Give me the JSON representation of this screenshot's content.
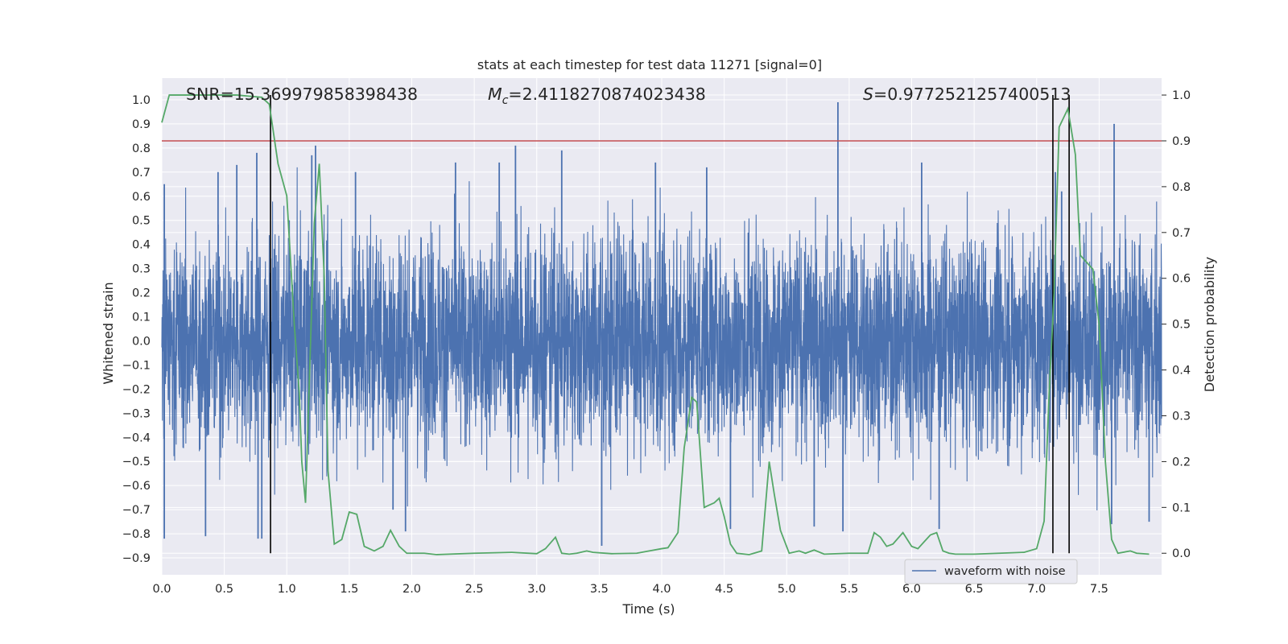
{
  "chart_data": {
    "type": "line",
    "title": "stats at each timestep for test data 11271 [signal=0]",
    "xlabel": "Time (s)",
    "ylabel": "Whitened strain",
    "ylabel_right": "Detection probability",
    "xlim": [
      0.0,
      8.0
    ],
    "ylim": [
      -0.97,
      1.09
    ],
    "ylim_right": [
      -0.047,
      1.037
    ],
    "x_ticks": [
      0.0,
      0.5,
      1.0,
      1.5,
      2.0,
      2.5,
      3.0,
      3.5,
      4.0,
      4.5,
      5.0,
      5.5,
      6.0,
      6.5,
      7.0,
      7.5
    ],
    "x_tick_labels": [
      "0.0",
      "0.5",
      "1.0",
      "1.5",
      "2.0",
      "2.5",
      "3.0",
      "3.5",
      "4.0",
      "4.5",
      "5.0",
      "5.5",
      "6.0",
      "6.5",
      "7.0",
      "7.5"
    ],
    "y_ticks": [
      1.0,
      0.9,
      0.8,
      0.7,
      0.6,
      0.5,
      0.4,
      0.3,
      0.2,
      0.1,
      0.0,
      -0.1,
      -0.2,
      -0.3,
      -0.4,
      -0.5,
      -0.6,
      -0.7,
      -0.8,
      -0.9
    ],
    "y_tick_labels": [
      "1.0",
      "0.9",
      "0.8",
      "0.7",
      "0.6",
      "0.5",
      "0.4",
      "0.3",
      "0.2",
      "0.1",
      "0.0",
      "−0.1",
      "−0.2",
      "−0.3",
      "−0.4",
      "−0.5",
      "−0.6",
      "−0.7",
      "−0.8",
      "−0.9"
    ],
    "y_right_ticks": [
      1.0,
      0.9,
      0.8,
      0.7,
      0.6,
      0.5,
      0.4,
      0.3,
      0.2,
      0.1,
      0.0
    ],
    "y_right_tick_labels": [
      "1.0",
      "0.9",
      "0.8",
      "0.7",
      "0.6",
      "0.5",
      "0.4",
      "0.3",
      "0.2",
      "0.1",
      "0.0"
    ],
    "grid": true,
    "legend_position": "lower-right",
    "annotations": {
      "snr": "SNR=15.369979858398438",
      "mc_symbol": "M",
      "mc_subscript": "c",
      "mc_value": "=2.4118270874023438",
      "s_symbol": "S",
      "s_value": "=0.9772521257400513"
    },
    "series": [
      {
        "name": "waveform with noise",
        "color": "#4c72b0",
        "axis": "left",
        "envelope_rms": 0.22,
        "spikes": [
          {
            "x": 0.02,
            "y": 0.65
          },
          {
            "x": 0.02,
            "y": -0.82
          },
          {
            "x": 0.35,
            "y": -0.81
          },
          {
            "x": 0.45,
            "y": 0.7
          },
          {
            "x": 0.6,
            "y": 0.73
          },
          {
            "x": 0.76,
            "y": 0.78
          },
          {
            "x": 0.77,
            "y": -0.82
          },
          {
            "x": 0.8,
            "y": -0.82
          },
          {
            "x": 1.2,
            "y": 0.77
          },
          {
            "x": 1.23,
            "y": 0.81
          },
          {
            "x": 1.55,
            "y": 0.7
          },
          {
            "x": 1.85,
            "y": -0.7
          },
          {
            "x": 1.95,
            "y": -0.79
          },
          {
            "x": 2.35,
            "y": 0.74
          },
          {
            "x": 2.7,
            "y": 0.74
          },
          {
            "x": 2.83,
            "y": 0.81
          },
          {
            "x": 3.2,
            "y": 0.79
          },
          {
            "x": 3.52,
            "y": -0.85
          },
          {
            "x": 3.95,
            "y": 0.74
          },
          {
            "x": 4.36,
            "y": 0.72
          },
          {
            "x": 4.55,
            "y": -0.78
          },
          {
            "x": 5.22,
            "y": -0.77
          },
          {
            "x": 5.41,
            "y": 0.99
          },
          {
            "x": 5.45,
            "y": -0.79
          },
          {
            "x": 6.08,
            "y": 0.74
          },
          {
            "x": 6.22,
            "y": -0.78
          },
          {
            "x": 7.15,
            "y": 0.7
          },
          {
            "x": 7.2,
            "y": 0.62
          },
          {
            "x": 7.6,
            "y": -0.76
          },
          {
            "x": 7.62,
            "y": 0.9
          },
          {
            "x": 7.9,
            "y": -0.75
          }
        ]
      },
      {
        "name": "",
        "color": "#55a868",
        "axis": "right",
        "x": [
          0.0,
          0.06,
          0.2,
          0.4,
          0.6,
          0.8,
          0.86,
          0.93,
          1.0,
          1.06,
          1.1,
          1.12,
          1.15,
          1.22,
          1.26,
          1.3,
          1.33,
          1.38,
          1.44,
          1.5,
          1.56,
          1.62,
          1.7,
          1.77,
          1.83,
          1.9,
          1.96,
          2.0,
          2.1,
          2.2,
          2.5,
          2.8,
          3.0,
          3.07,
          3.15,
          3.2,
          3.26,
          3.32,
          3.4,
          3.45,
          3.6,
          3.8,
          3.9,
          4.0,
          4.05,
          4.13,
          4.18,
          4.24,
          4.28,
          4.34,
          4.38,
          4.42,
          4.46,
          4.5,
          4.55,
          4.6,
          4.7,
          4.8,
          4.86,
          4.9,
          4.95,
          5.02,
          5.1,
          5.15,
          5.22,
          5.3,
          5.5,
          5.65,
          5.7,
          5.75,
          5.8,
          5.85,
          5.93,
          6.0,
          6.05,
          6.1,
          6.15,
          6.2,
          6.25,
          6.3,
          6.35,
          6.5,
          6.7,
          6.9,
          7.0,
          7.06,
          7.1,
          7.14,
          7.18,
          7.25,
          7.31,
          7.35,
          7.45,
          7.5,
          7.55,
          7.6,
          7.65,
          7.75,
          7.8,
          7.9
        ],
        "values": [
          0.94,
          1.0,
          1.0,
          1.0,
          1.0,
          0.995,
          0.98,
          0.85,
          0.78,
          0.5,
          0.35,
          0.2,
          0.11,
          0.72,
          0.85,
          0.6,
          0.18,
          0.02,
          0.03,
          0.09,
          0.085,
          0.015,
          0.005,
          0.015,
          0.05,
          0.015,
          0.0,
          0.0,
          0.0,
          -0.003,
          0.0,
          0.002,
          -0.001,
          0.01,
          0.035,
          0.0,
          -0.002,
          0.0,
          0.005,
          0.002,
          -0.001,
          0.0,
          0.005,
          0.01,
          0.012,
          0.045,
          0.23,
          0.34,
          0.33,
          0.1,
          0.105,
          0.11,
          0.12,
          0.08,
          0.02,
          0.0,
          -0.003,
          0.005,
          0.2,
          0.13,
          0.05,
          0.0,
          0.005,
          0.0,
          0.007,
          -0.002,
          0.0,
          0.0,
          0.045,
          0.035,
          0.015,
          0.02,
          0.045,
          0.015,
          0.01,
          0.025,
          0.04,
          0.045,
          0.005,
          0.0,
          -0.002,
          -0.002,
          0.0,
          0.002,
          0.01,
          0.07,
          0.35,
          0.57,
          0.93,
          0.97,
          0.87,
          0.65,
          0.62,
          0.5,
          0.2,
          0.03,
          0.0,
          0.005,
          0.0,
          -0.002
        ]
      }
    ],
    "thresholds": [
      {
        "axis": "right",
        "y": 0.9,
        "color": "#c44e52"
      }
    ],
    "vertical_markers": [
      {
        "x": 0.87,
        "color": "#000000"
      },
      {
        "x": 7.13,
        "color": "#000000"
      },
      {
        "x": 7.26,
        "color": "#000000"
      }
    ]
  }
}
